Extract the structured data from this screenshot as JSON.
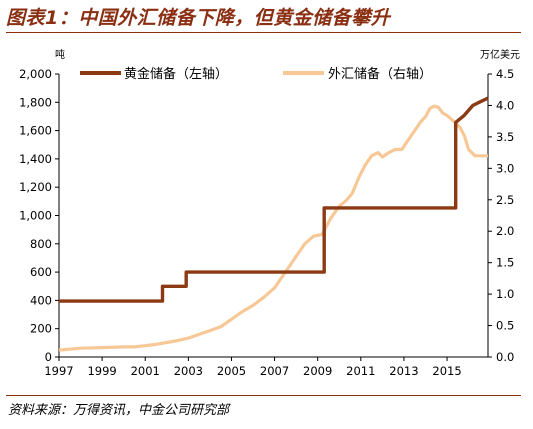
{
  "figure": {
    "title": "图表1：中国外汇储备下降，但黄金储备攀升",
    "source": "资料来源：万得资讯，中金公司研究部"
  },
  "chart_data": {
    "type": "line",
    "left_unit": "吨",
    "right_unit": "万亿美元",
    "x_ticks": [
      "1997",
      "1999",
      "2001",
      "2003",
      "2005",
      "2007",
      "2009",
      "2011",
      "2013",
      "2015"
    ],
    "left_ticks": [
      "0",
      "200",
      "400",
      "600",
      "800",
      "1,000",
      "1,200",
      "1,400",
      "1,600",
      "1,800",
      "2,000"
    ],
    "right_ticks": [
      "0.0",
      "0.5",
      "1.0",
      "1.5",
      "2.0",
      "2.5",
      "3.0",
      "3.5",
      "4.0",
      "4.5"
    ],
    "xlim": [
      1997,
      2016.9
    ],
    "ylim_left": [
      0,
      2000
    ],
    "ylim_right": [
      0,
      4.5
    ],
    "legend_position": "top",
    "series": [
      {
        "name": "黄金储备（左轴）",
        "axis": "left",
        "color": "#8b3a14",
        "step": true,
        "x": [
          1997.0,
          2001.8,
          2001.8,
          2002.9,
          2002.9,
          2009.3,
          2009.3,
          2015.4,
          2015.4,
          2015.8,
          2016.2,
          2016.6,
          2016.9
        ],
        "y": [
          395,
          395,
          500,
          500,
          600,
          600,
          1054,
          1054,
          1658,
          1708,
          1778,
          1808,
          1830
        ]
      },
      {
        "name": "外汇储备（右轴）",
        "axis": "right",
        "color": "#f7c896",
        "step": false,
        "x": [
          1997.0,
          1998.0,
          1999.0,
          2000.0,
          2000.5,
          2001.0,
          2001.5,
          2002.0,
          2002.5,
          2003.0,
          2003.5,
          2004.0,
          2004.5,
          2005.0,
          2005.5,
          2006.0,
          2006.5,
          2007.0,
          2007.5,
          2008.0,
          2008.4,
          2008.8,
          2009.2,
          2009.6,
          2010.0,
          2010.3,
          2010.6,
          2010.9,
          2011.2,
          2011.5,
          2011.8,
          2012.0,
          2012.3,
          2012.6,
          2012.9,
          2013.2,
          2013.5,
          2013.8,
          2014.0,
          2014.2,
          2014.4,
          2014.6,
          2014.8,
          2015.0,
          2015.2,
          2015.4,
          2015.6,
          2015.8,
          2016.0,
          2016.3,
          2016.6,
          2016.9
        ],
        "y": [
          0.11,
          0.14,
          0.15,
          0.16,
          0.16,
          0.18,
          0.2,
          0.23,
          0.26,
          0.3,
          0.36,
          0.42,
          0.48,
          0.6,
          0.72,
          0.82,
          0.95,
          1.1,
          1.35,
          1.6,
          1.8,
          1.92,
          1.95,
          2.2,
          2.4,
          2.48,
          2.6,
          2.85,
          3.05,
          3.2,
          3.25,
          3.18,
          3.25,
          3.3,
          3.3,
          3.45,
          3.6,
          3.75,
          3.82,
          3.95,
          3.99,
          3.97,
          3.88,
          3.84,
          3.78,
          3.72,
          3.65,
          3.52,
          3.3,
          3.2,
          3.2,
          3.2
        ]
      }
    ]
  }
}
